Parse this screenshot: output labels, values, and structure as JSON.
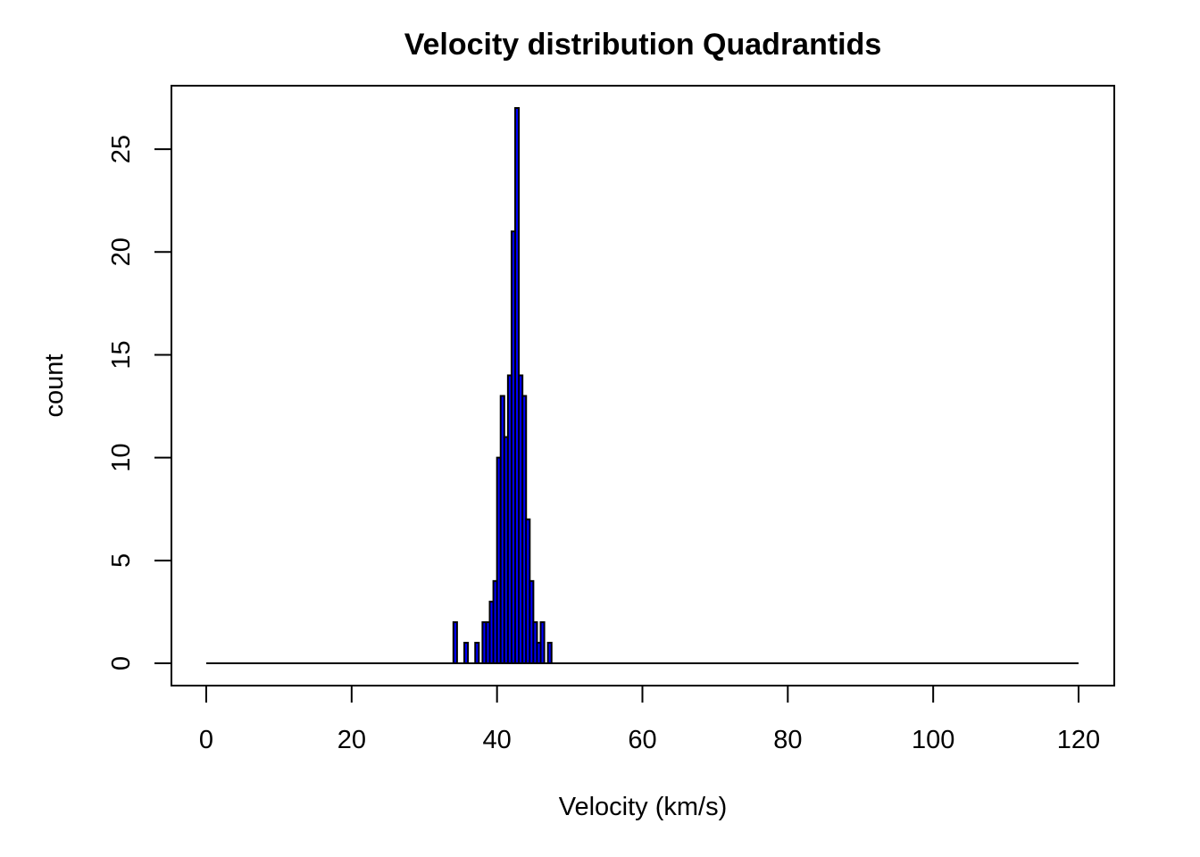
{
  "chart_data": {
    "type": "bar",
    "title": "Velocity distribution Quadrantids",
    "xlabel": "Velocity (km/s)",
    "ylabel": "count",
    "xlim": [
      0,
      120
    ],
    "ylim": [
      0,
      27
    ],
    "xticks": [
      0,
      20,
      40,
      60,
      80,
      100,
      120
    ],
    "yticks": [
      0,
      5,
      10,
      15,
      20,
      25
    ],
    "bin_width": 0.5,
    "grid": false,
    "legend": "none",
    "bar_fill": "#0000ff",
    "bar_stroke": "#000000",
    "series": [
      {
        "bins": [
          {
            "x": 34.0,
            "count": 2
          },
          {
            "x": 35.5,
            "count": 1
          },
          {
            "x": 37.0,
            "count": 1
          },
          {
            "x": 38.0,
            "count": 2
          },
          {
            "x": 38.5,
            "count": 2
          },
          {
            "x": 39.0,
            "count": 3
          },
          {
            "x": 39.5,
            "count": 4
          },
          {
            "x": 40.0,
            "count": 10
          },
          {
            "x": 40.5,
            "count": 13
          },
          {
            "x": 41.0,
            "count": 11
          },
          {
            "x": 41.5,
            "count": 14
          },
          {
            "x": 42.0,
            "count": 21
          },
          {
            "x": 42.5,
            "count": 27
          },
          {
            "x": 43.0,
            "count": 14
          },
          {
            "x": 43.5,
            "count": 13
          },
          {
            "x": 44.0,
            "count": 7
          },
          {
            "x": 44.5,
            "count": 4
          },
          {
            "x": 45.0,
            "count": 2
          },
          {
            "x": 45.5,
            "count": 1
          },
          {
            "x": 46.0,
            "count": 2
          },
          {
            "x": 47.0,
            "count": 1
          }
        ]
      }
    ]
  }
}
